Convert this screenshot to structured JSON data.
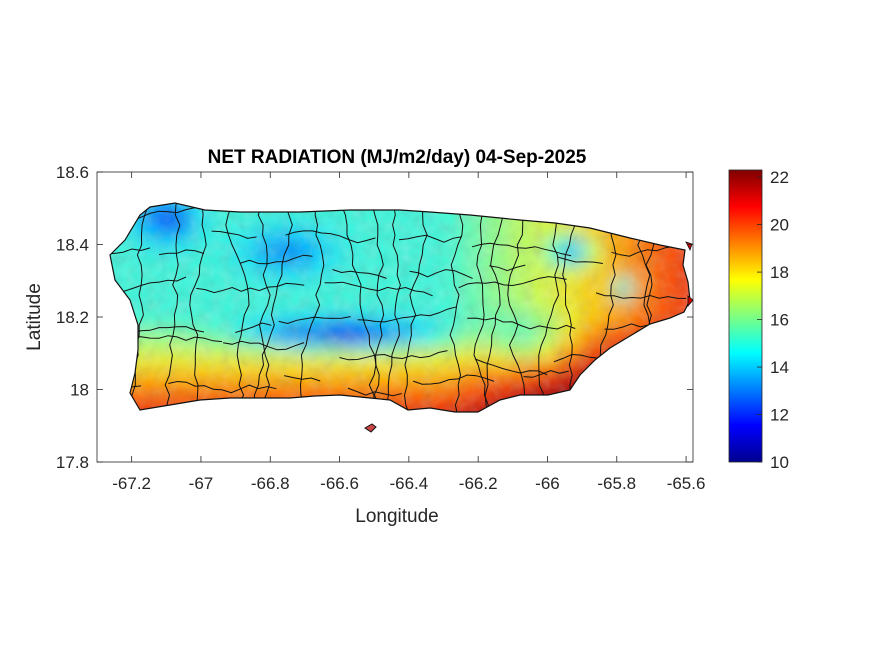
{
  "chart_data": {
    "type": "heatmap",
    "title": "NET RADIATION (MJ/m2/day) 04-Sep-2025",
    "xlabel": "Longitude",
    "ylabel": "Latitude",
    "xlim": [
      -67.3,
      -65.58
    ],
    "ylim": [
      17.8,
      18.6
    ],
    "xticks": [
      -67.2,
      -67,
      -66.8,
      -66.6,
      -66.4,
      -66.2,
      -66,
      -65.8,
      -65.6
    ],
    "yticks": [
      17.8,
      18,
      18.2,
      18.4,
      18.6
    ],
    "xtick_labels": [
      "-67.2",
      "-67",
      "-66.8",
      "-66.6",
      "-66.4",
      "-66.2",
      "-66",
      "-65.8",
      "-65.6"
    ],
    "ytick_labels": [
      "17.8",
      "18",
      "18.2",
      "18.4",
      "18.6"
    ],
    "colorbar": {
      "colormap": "jet",
      "range": [
        10,
        22.3
      ],
      "ticks": [
        10,
        12,
        14,
        16,
        18,
        20,
        22
      ],
      "tick_labels": [
        "10",
        "12",
        "14",
        "16",
        "18",
        "20",
        "22"
      ]
    },
    "grid": false,
    "region": "Puerto Rico (municipality boundaries)",
    "field_summary": [
      {
        "area": "north-west interior",
        "lon": [
          -67.2,
          -66.4
        ],
        "lat": [
          18.25,
          18.5
        ],
        "value": 13.5
      },
      {
        "area": "central cordillera band",
        "lon": [
          -66.8,
          -66.4
        ],
        "lat": [
          18.1,
          18.2
        ],
        "value": 12.5
      },
      {
        "area": "south coast",
        "lon": [
          -67.2,
          -66.2
        ],
        "lat": [
          17.93,
          18.05
        ],
        "value": 21.5
      },
      {
        "area": "north-east",
        "lon": [
          -66.3,
          -65.6
        ],
        "lat": [
          18.15,
          18.5
        ],
        "value": 20.5
      },
      {
        "area": "east-central",
        "lon": [
          -66.2,
          -65.9
        ],
        "lat": [
          18.05,
          18.25
        ],
        "value": 18.5
      },
      {
        "area": "far north-east coast",
        "lon": [
          -66.0,
          -65.7
        ],
        "lat": [
          18.3,
          18.45
        ],
        "value": 15.5
      }
    ]
  }
}
